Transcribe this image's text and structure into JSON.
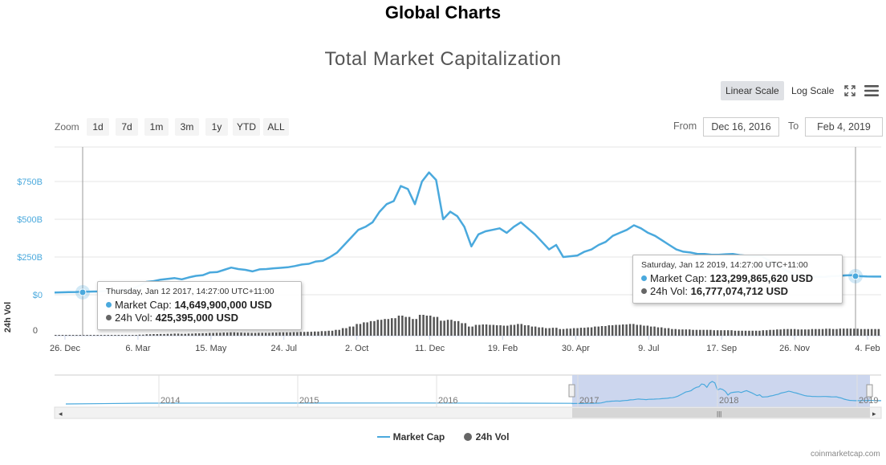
{
  "page_title": "Global Charts",
  "toolbar": {
    "linear_scale": "Linear Scale",
    "log_scale": "Log Scale",
    "zoom_label": "Zoom",
    "zoom_buttons": [
      "1d",
      "7d",
      "1m",
      "3m",
      "1y",
      "YTD",
      "ALL"
    ],
    "from_label": "From",
    "from_value": "Dec 16, 2016",
    "to_label": "To",
    "to_value": "Feb 4, 2019"
  },
  "tooltips": [
    {
      "date": "Thursday, Jan 12 2017, 14:27:00 UTC+11:00",
      "market_cap_label": "Market Cap:",
      "market_cap_value": "14,649,900,000 USD",
      "vol_label": "24h Vol:",
      "vol_value": "425,395,000 USD"
    },
    {
      "date": "Saturday, Jan 12 2019, 14:27:00 UTC+11:00",
      "market_cap_label": "Market Cap:",
      "market_cap_value": "123,299,865,620 USD",
      "vol_label": "24h Vol:",
      "vol_value": "16,777,074,712 USD"
    }
  ],
  "legend": [
    "Market Cap",
    "24h Vol"
  ],
  "credit": "coinmarketcap.com",
  "colors": {
    "market_cap": "#4aa9dd",
    "volume": "#666666",
    "navigator_fill": "#c6d1ec"
  },
  "chart_data": {
    "type": "line",
    "title": "Total Market Capitalization",
    "xlabel": "",
    "ylabel": "",
    "y_axis_market_cap": {
      "ticks": [
        "$0",
        "$250B",
        "$500B",
        "$750B"
      ],
      "tick_values": [
        0,
        250,
        500,
        750
      ],
      "unit": "billion USD"
    },
    "y_axis_volume": {
      "label": "24h Vol",
      "ticks": [
        "0"
      ],
      "tick_values": [
        0
      ]
    },
    "x_tick_labels": [
      "26. Dec",
      "6. Mar",
      "15. May",
      "24. Jul",
      "2. Oct",
      "11. Dec",
      "19. Feb",
      "30. Apr",
      "9. Jul",
      "17. Sep",
      "26. Nov",
      "4. Feb"
    ],
    "x_range": [
      "Dec 16, 2016",
      "Feb 4, 2019"
    ],
    "series": [
      {
        "name": "Market Cap",
        "unit": "billion USD",
        "values": [
          15,
          16,
          17,
          18,
          20,
          21,
          22,
          24,
          26,
          28,
          30,
          38,
          60,
          85,
          90,
          100,
          105,
          110,
          102,
          115,
          125,
          130,
          148,
          150,
          165,
          180,
          170,
          165,
          155,
          168,
          170,
          175,
          178,
          182,
          190,
          200,
          205,
          220,
          225,
          250,
          280,
          330,
          380,
          430,
          450,
          480,
          550,
          600,
          620,
          720,
          700,
          600,
          750,
          810,
          760,
          500,
          550,
          520,
          450,
          320,
          400,
          420,
          430,
          440,
          410,
          450,
          480,
          440,
          400,
          350,
          300,
          330,
          250,
          255,
          260,
          285,
          300,
          330,
          350,
          390,
          410,
          430,
          460,
          440,
          410,
          390,
          360,
          330,
          300,
          285,
          280,
          270,
          270,
          265,
          265,
          268,
          270,
          262,
          258,
          255,
          258,
          230,
          210,
          175,
          150,
          130,
          125,
          120,
          119,
          118,
          123,
          125,
          128,
          130,
          123,
          121,
          120,
          120
        ]
      },
      {
        "name": "24h Vol",
        "unit": "billion USD",
        "values": [
          0.4,
          0.4,
          0.5,
          0.5,
          0.6,
          0.6,
          0.7,
          0.8,
          0.9,
          1.0,
          1.2,
          1.5,
          2.5,
          3.5,
          3.8,
          4.0,
          4.5,
          5.0,
          4.5,
          5.0,
          5.5,
          6.0,
          6.5,
          7.0,
          7.5,
          8.0,
          7.5,
          7.0,
          6.5,
          7.0,
          7.0,
          7.5,
          8.0,
          8.0,
          8.5,
          9.0,
          9.5,
          10,
          11,
          12,
          14,
          18,
          22,
          28,
          32,
          35,
          38,
          40,
          42,
          48,
          45,
          40,
          50,
          48,
          45,
          36,
          38,
          35,
          30,
          22,
          26,
          27,
          26,
          25,
          24,
          26,
          28,
          25,
          22,
          20,
          18,
          19,
          16,
          17,
          18,
          19,
          20,
          22,
          23,
          25,
          26,
          27,
          28,
          26,
          24,
          22,
          20,
          18,
          16,
          15,
          15,
          14,
          14,
          14,
          13,
          13,
          13,
          12,
          12,
          12,
          12,
          13,
          14,
          15,
          16,
          16,
          15,
          15,
          16,
          16,
          16.8,
          16,
          17,
          17,
          16.8,
          16,
          16,
          16
        ]
      }
    ],
    "navigator": {
      "years": [
        "2014",
        "2015",
        "2016",
        "2017",
        "2018",
        "2019"
      ],
      "selected_range": [
        "Dec 16, 2016",
        "Feb 4, 2019"
      ]
    }
  }
}
